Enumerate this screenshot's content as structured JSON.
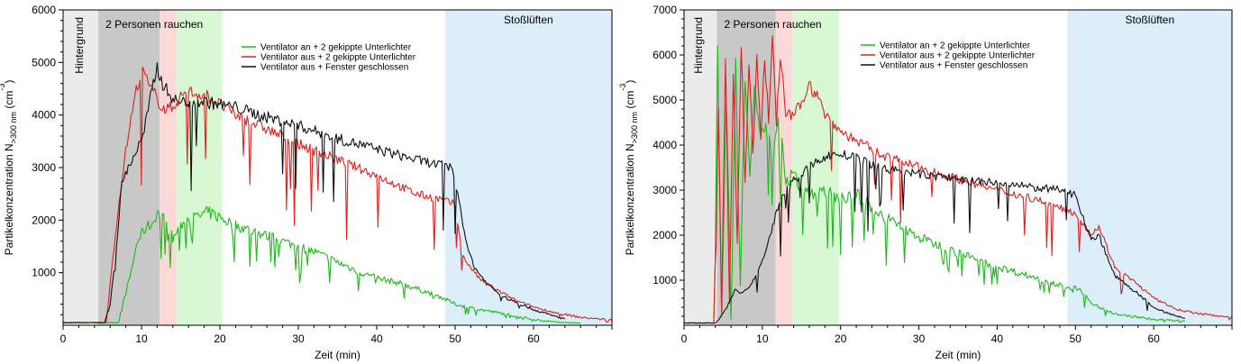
{
  "chart_data": [
    {
      "type": "line",
      "xlabel": "Zeit (min)",
      "ylabel_main": "Partikelkonzentration N",
      "ylabel_sub": ">300 nm",
      "ylabel_unit": " (cm",
      "ylabel_exp": "-3",
      "ylabel_close": ")",
      "xlim": [
        0,
        70
      ],
      "ylim": [
        0,
        6000
      ],
      "xticks": [
        0,
        10,
        20,
        30,
        40,
        50,
        60
      ],
      "yticks": [
        1000,
        2000,
        3000,
        4000,
        5000,
        6000
      ],
      "phases": [
        {
          "label": "Hintergrund",
          "start": 0,
          "end": 4.5,
          "color": "#ebebeb",
          "vertical": true
        },
        {
          "label": "2 Personen rauchen",
          "start": 4.5,
          "end": 12.3,
          "color": "#c8c8c8",
          "vertical": false
        },
        {
          "label": "",
          "start": 12.3,
          "end": 14.5,
          "color": "#fcd8d8",
          "vertical": false
        },
        {
          "label": "",
          "start": 14.5,
          "end": 20.3,
          "color": "#d8f8d4",
          "vertical": false
        },
        {
          "label": "Stoßlüften",
          "start": 48.7,
          "end": 70,
          "color": "#dbeefa",
          "vertical": false
        }
      ],
      "series": [
        {
          "name": "Ventilator an + 2 gekippte Unterlichter",
          "color": "#1bba1b",
          "x": [
            0,
            4,
            7,
            8.5,
            9.5,
            10.5,
            11.5,
            12,
            13,
            14,
            15.5,
            17,
            18.5,
            20,
            22,
            25,
            28,
            30,
            32,
            35,
            38,
            40,
            43,
            45,
            48,
            50,
            52,
            55,
            58,
            60,
            63,
            66
          ],
          "y": [
            50,
            50,
            50,
            900,
            1600,
            1850,
            1950,
            2150,
            2000,
            1650,
            2000,
            2050,
            2150,
            2050,
            1900,
            1750,
            1600,
            1500,
            1400,
            1200,
            1000,
            900,
            800,
            700,
            550,
            400,
            330,
            250,
            170,
            110,
            60,
            40
          ]
        },
        {
          "name": "Ventilator aus + 2 gekippte Unterlichter",
          "color": "#e0201e",
          "x": [
            0,
            5.5,
            6.5,
            7.5,
            8.5,
            9.5,
            10.3,
            11,
            11.5,
            12.2,
            13,
            14,
            15,
            16,
            17,
            18,
            19,
            20,
            22,
            25,
            30,
            35,
            40,
            45,
            48,
            50,
            51,
            52,
            53,
            55,
            58,
            60,
            63,
            66,
            70
          ],
          "y": [
            50,
            50,
            1500,
            2800,
            3800,
            4600,
            4850,
            4500,
            4450,
            4250,
            4100,
            4150,
            4350,
            4450,
            4400,
            4400,
            4300,
            4200,
            4000,
            3800,
            3450,
            3150,
            2850,
            2500,
            2400,
            2300,
            1300,
            1100,
            900,
            700,
            450,
            350,
            230,
            150,
            100
          ]
        },
        {
          "name": "Ventilator aus + Fenster geschlossen",
          "color": "#111111",
          "x": [
            0,
            5.3,
            6,
            6.8,
            7.5,
            8.3,
            9.3,
            10.2,
            11,
            11.5,
            12,
            12.7,
            13.5,
            14.5,
            16,
            18,
            20,
            22,
            25,
            30,
            35,
            40,
            45,
            48,
            49.5,
            50.5,
            51.5,
            52.5,
            54,
            56,
            58,
            60,
            62,
            64
          ],
          "y": [
            50,
            50,
            400,
            1500,
            2700,
            3000,
            3300,
            3600,
            4200,
            4600,
            4900,
            4600,
            4400,
            4250,
            4250,
            4250,
            4200,
            4150,
            4000,
            3800,
            3550,
            3350,
            3150,
            3050,
            3000,
            2400,
            1500,
            1100,
            800,
            550,
            420,
            300,
            200,
            120
          ]
        }
      ]
    },
    {
      "type": "line",
      "xlabel": "Zeit (min)",
      "ylabel_main": "Partikelkonzentration N",
      "ylabel_sub": ">300 nm",
      "ylabel_unit": " (cm",
      "ylabel_exp": "-3",
      "ylabel_close": ")",
      "xlim": [
        0,
        70
      ],
      "ylim": [
        0,
        7000
      ],
      "xticks": [
        0,
        10,
        20,
        30,
        40,
        50,
        60
      ],
      "yticks": [
        1000,
        2000,
        3000,
        4000,
        5000,
        6000,
        7000
      ],
      "phases": [
        {
          "label": "Hintergrund",
          "start": 0,
          "end": 4.2,
          "color": "#ebebeb",
          "vertical": true
        },
        {
          "label": "2 Personen rauchen",
          "start": 4.2,
          "end": 11.7,
          "color": "#c8c8c8",
          "vertical": false
        },
        {
          "label": "",
          "start": 11.7,
          "end": 13.8,
          "color": "#fcd8d8",
          "vertical": false
        },
        {
          "label": "",
          "start": 13.8,
          "end": 19.8,
          "color": "#d8f8d4",
          "vertical": false
        },
        {
          "label": "Stoßlüften",
          "start": 49,
          "end": 70,
          "color": "#dbeefa",
          "vertical": false
        }
      ],
      "series": [
        {
          "name": "Ventilator an + 2 gekippte Unterlichter",
          "color": "#1bba1b",
          "x": [
            0,
            3.8,
            4.3,
            4.8,
            5.4,
            6,
            6.6,
            7.2,
            7.8,
            8.4,
            9,
            9.8,
            10.6,
            11.4,
            12.2,
            13,
            14,
            15,
            17,
            19,
            21,
            22,
            24,
            27,
            30,
            35,
            40,
            45,
            48,
            49,
            50,
            51,
            52,
            55,
            60,
            64
          ],
          "y": [
            50,
            50,
            6100,
            200,
            5200,
            150,
            5800,
            900,
            5500,
            3500,
            5200,
            4200,
            4300,
            3800,
            5000,
            3200,
            3300,
            3000,
            2950,
            2900,
            2800,
            2900,
            2600,
            2250,
            1950,
            1600,
            1300,
            1050,
            900,
            800,
            850,
            700,
            500,
            250,
            130,
            90
          ]
        },
        {
          "name": "Ventilator aus + 2 gekippte Unterlichter",
          "color": "#e0201e",
          "x": [
            0,
            3.8,
            4.4,
            4.8,
            5.3,
            5.8,
            6.3,
            6.8,
            7.3,
            7.8,
            8.3,
            8.8,
            9.3,
            9.8,
            10.3,
            10.8,
            11.3,
            11.8,
            12.3,
            13,
            14,
            15,
            16,
            17,
            18,
            19,
            20,
            22,
            25,
            30,
            35,
            40,
            45,
            48,
            50,
            52,
            53,
            55,
            58,
            60,
            63,
            66,
            70
          ],
          "y": [
            50,
            50,
            4800,
            300,
            6000,
            500,
            5600,
            1800,
            6300,
            3200,
            5800,
            3800,
            6000,
            4200,
            5900,
            4600,
            6300,
            4500,
            6000,
            4700,
            4600,
            5000,
            5300,
            5100,
            4700,
            4500,
            4300,
            4100,
            3800,
            3500,
            3250,
            3000,
            2800,
            2600,
            2500,
            2000,
            2200,
            1300,
            900,
            600,
            350,
            250,
            180
          ]
        },
        {
          "name": "Ventilator aus + Fenster geschlossen",
          "color": "#111111",
          "x": [
            0,
            4,
            4.5,
            5.5,
            6.5,
            7.5,
            8.5,
            9.5,
            10.5,
            11.5,
            12.5,
            14,
            16,
            18,
            20,
            22,
            25,
            30,
            35,
            40,
            45,
            48,
            50,
            51,
            52,
            53,
            55,
            58,
            60,
            62,
            64
          ],
          "y": [
            50,
            50,
            150,
            400,
            800,
            700,
            900,
            1200,
            1700,
            2300,
            2900,
            3200,
            3500,
            3750,
            3800,
            3700,
            3500,
            3350,
            3250,
            3150,
            3050,
            3000,
            2900,
            2400,
            1900,
            2000,
            1100,
            700,
            400,
            250,
            150
          ]
        }
      ]
    }
  ]
}
